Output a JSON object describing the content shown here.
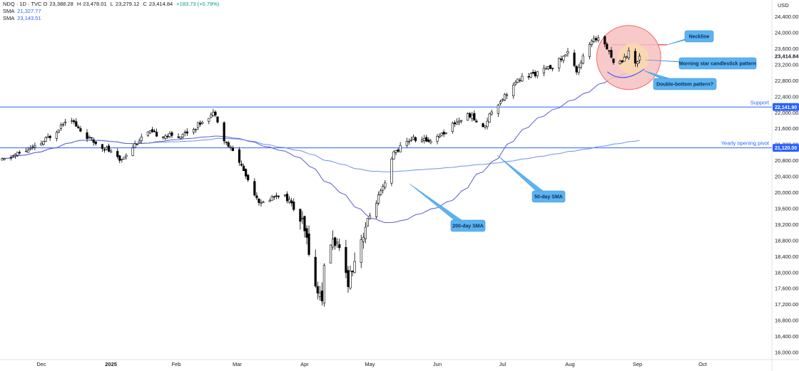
{
  "header": {
    "symbol": "NDQ · 1D · TVC",
    "open_label": "O",
    "open": "23,388.28",
    "high_label": "H",
    "high": "23,478.01",
    "low_label": "L",
    "low": "23,279.12",
    "close_label": "C",
    "close": "23,414.84",
    "change": "+183.73 (+0.79%)",
    "sma1_label": "SMA",
    "sma1_value": "21,327.77",
    "sma2_label": "SMA",
    "sma2_value": "23,143.51"
  },
  "axis": {
    "currency": "USD",
    "price_tag_last": "23,414.84",
    "price_tag_support": "22,141.90",
    "price_tag_pivot": "21,120.00"
  },
  "colors": {
    "up": "#ffffff",
    "down": "#000000",
    "sma50": "#5b5bd6",
    "sma200": "#6e8ff0",
    "hline": "#2962ff",
    "neckline": "#f23645",
    "callout_fill": "#5cb3f2",
    "circle_fill": "#f7c0c0",
    "circle_inner": "#f9d8b0"
  },
  "chart_data": {
    "type": "candlestick",
    "title": "NDQ · 1D · TVC",
    "ylim": [
      15800,
      24600
    ],
    "y_ticks": [
      "24,400.00",
      "24,000.00",
      "23,600.00",
      "23,200.00",
      "22,800.00",
      "22,400.00",
      "22,000.00",
      "21,600.00",
      "21,200.00",
      "20,800.00",
      "20,400.00",
      "20,000.00",
      "19,600.00",
      "19,200.00",
      "18,800.00",
      "18,400.00",
      "18,000.00",
      "17,600.00",
      "17,200.00",
      "16,800.00",
      "16,400.00",
      "16,000.00"
    ],
    "x_labels": [
      "Dec",
      "2025",
      "Feb",
      "Mar",
      "Apr",
      "May",
      "Jun",
      "Jul",
      "Aug",
      "Sep",
      "Oct"
    ],
    "x_label_days": [
      0,
      32,
      62,
      90,
      121,
      151,
      182,
      212,
      243,
      274,
      304
    ],
    "series": [
      {
        "name": "SMA",
        "value_label": "21,327.77"
      },
      {
        "name": "SMA",
        "value_label": "23,143.51"
      }
    ],
    "support": {
      "label": "Support",
      "value": 22141.9
    },
    "pivot": {
      "label": "Yearly opening pivot",
      "value": 21120.0
    },
    "last_price": 23414.84,
    "neckline": 23700,
    "annotations": [
      {
        "text": "Neckline"
      },
      {
        "text": "Morning star candlestick pattern"
      },
      {
        "text": "Double-bottom pattern?"
      },
      {
        "text": "50-day SMA"
      },
      {
        "text": "200-day SMA"
      }
    ]
  }
}
